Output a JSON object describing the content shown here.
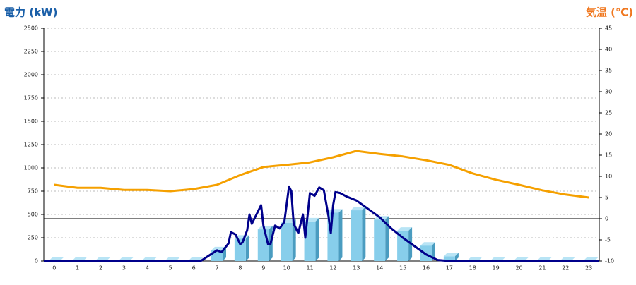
{
  "chart_data": {
    "type": "combo",
    "y_label": "電力 (kW)",
    "y2_label": "気温 (℃)",
    "categories": [
      "0",
      "1",
      "2",
      "3",
      "4",
      "5",
      "6",
      "7",
      "8",
      "9",
      "10",
      "11",
      "12",
      "13",
      "14",
      "15",
      "16",
      "17",
      "18",
      "19",
      "20",
      "21",
      "22",
      "23"
    ],
    "xlim": [
      -0.45,
      23.45
    ],
    "ylim": [
      0,
      2500
    ],
    "yticks": [
      0,
      250,
      500,
      750,
      1000,
      1250,
      1500,
      1750,
      2000,
      2250,
      2500
    ],
    "y2lim": [
      -10,
      45
    ],
    "y2ticks": [
      -10,
      -5,
      0,
      5,
      10,
      15,
      20,
      25,
      30,
      35,
      40,
      45
    ],
    "grid": true,
    "series": [
      {
        "kind": "bar",
        "color": "#87ceeb",
        "values": [
          0,
          0,
          0,
          0,
          0,
          0,
          0,
          115,
          240,
          340,
          410,
          425,
          520,
          545,
          445,
          325,
          165,
          50,
          0,
          0,
          0,
          0,
          0,
          0
        ]
      },
      {
        "kind": "line",
        "axis": "y2",
        "color": "#f5a000",
        "values": [
          8,
          7.3,
          7.3,
          6.8,
          6.8,
          6.5,
          7,
          8,
          10.3,
          12.2,
          12.7,
          13.3,
          14.5,
          16,
          15.3,
          14.7,
          13.8,
          12.7,
          10.7,
          9.2,
          8,
          6.7,
          5.7,
          5
        ]
      },
      {
        "kind": "line",
        "color": "#00008b",
        "x": [
          -0.45,
          6.3,
          7,
          7.2,
          7.5,
          7.6,
          7.8,
          8,
          8.1,
          8.3,
          8.4,
          8.5,
          8.7,
          8.9,
          9,
          9.2,
          9.3,
          9.5,
          9.7,
          9.9,
          10.1,
          10.2,
          10.3,
          10.5,
          10.7,
          10.8,
          11,
          11.2,
          11.4,
          11.6,
          11.8,
          11.9,
          12,
          12.1,
          12.3,
          12.6,
          13,
          13.5,
          14,
          14.5,
          15,
          15.5,
          16,
          16.5,
          17,
          23.45
        ],
        "values": [
          0,
          0,
          115,
          95,
          190,
          310,
          285,
          180,
          200,
          330,
          500,
          400,
          500,
          600,
          380,
          180,
          180,
          380,
          350,
          420,
          800,
          750,
          400,
          300,
          500,
          250,
          730,
          700,
          790,
          760,
          480,
          300,
          600,
          740,
          730,
          690,
          650,
          560,
          470,
          350,
          250,
          160,
          70,
          10,
          0,
          0
        ]
      }
    ]
  }
}
